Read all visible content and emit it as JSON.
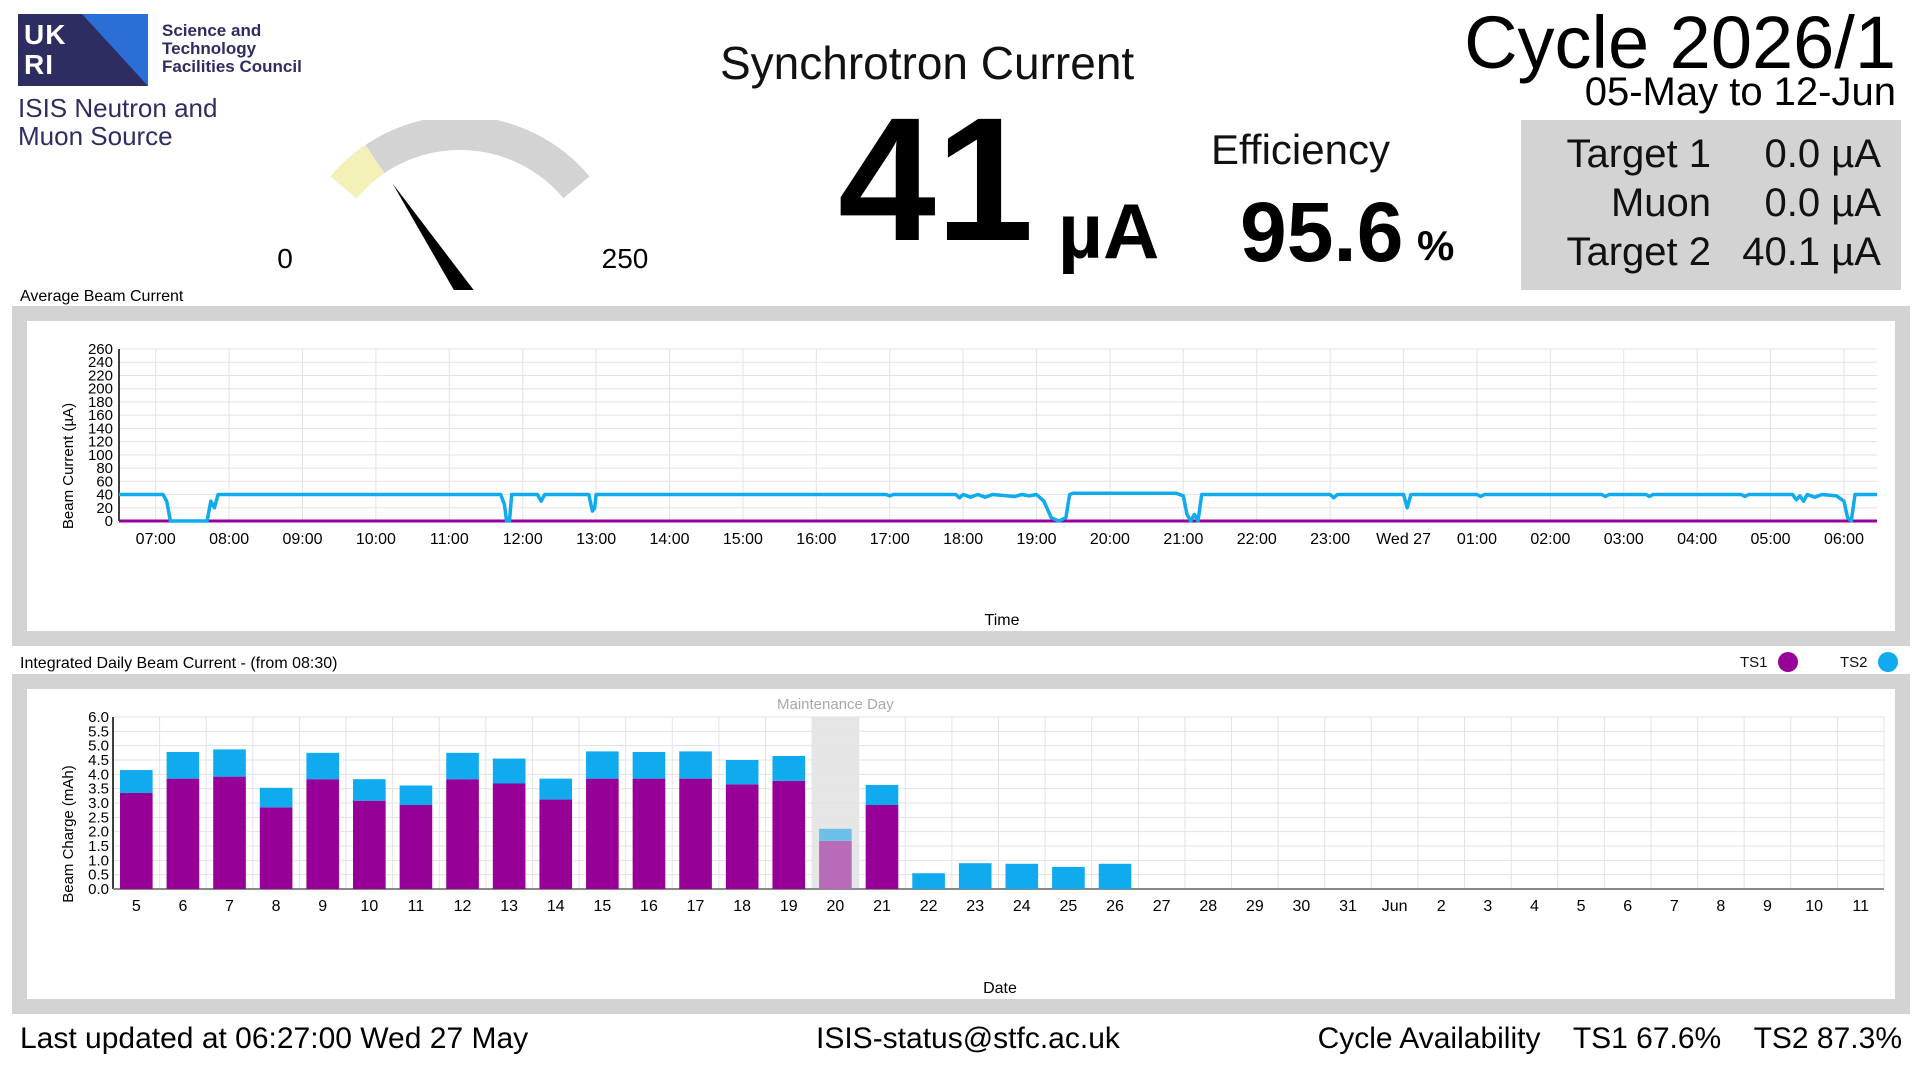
{
  "logo": {
    "ukri_top": "UK",
    "ukri_bottom": "RI",
    "org_line1": "Science and",
    "org_line2": "Technology",
    "org_line3": "Facilities Council",
    "source_line1": "ISIS Neutron and",
    "source_line2": "Muon Source"
  },
  "gauge": {
    "min_label": "0",
    "max_label": "250",
    "min": 0,
    "max": 250,
    "value": 41,
    "warning_max": 40,
    "track_color": "#d3d3d3",
    "warning_color": "#f3f0b8",
    "needle_color": "#000000"
  },
  "header": {
    "title": "Synchrotron Current",
    "current_value": "41",
    "current_unit": "µA",
    "efficiency_label": "Efficiency",
    "efficiency_value": "95.6",
    "efficiency_unit": "%",
    "cycle_title": "Cycle 2026/1",
    "cycle_dates": "05-May to 12-Jun"
  },
  "targets": [
    {
      "name": "Target 1",
      "value": "0.0 µA"
    },
    {
      "name": "Muon",
      "value": "0.0 µA"
    },
    {
      "name": "Target 2",
      "value": "40.1 µA"
    }
  ],
  "avg_panel_label": "Average Beam Current",
  "int_panel_label": "Integrated Daily Beam Current - (from 08:30)",
  "legend": {
    "ts1_label": "TS1",
    "ts2_label": "TS2",
    "ts1_color": "#960096",
    "ts2_color": "#10aaee"
  },
  "chart_data": [
    {
      "type": "line",
      "xlabel": "Time",
      "ylabel": "Beam Current (µA)",
      "ylim": [
        0,
        260
      ],
      "yticks": [
        0,
        20,
        40,
        60,
        80,
        100,
        120,
        140,
        160,
        180,
        200,
        220,
        240,
        260
      ],
      "xlim": [
        6.5,
        30.45
      ],
      "xticks": [
        {
          "t": 7,
          "label": "07:00"
        },
        {
          "t": 8,
          "label": "08:00"
        },
        {
          "t": 9,
          "label": "09:00"
        },
        {
          "t": 10,
          "label": "10:00"
        },
        {
          "t": 11,
          "label": "11:00"
        },
        {
          "t": 12,
          "label": "12:00"
        },
        {
          "t": 13,
          "label": "13:00"
        },
        {
          "t": 14,
          "label": "14:00"
        },
        {
          "t": 15,
          "label": "15:00"
        },
        {
          "t": 16,
          "label": "16:00"
        },
        {
          "t": 17,
          "label": "17:00"
        },
        {
          "t": 18,
          "label": "18:00"
        },
        {
          "t": 19,
          "label": "19:00"
        },
        {
          "t": 20,
          "label": "20:00"
        },
        {
          "t": 21,
          "label": "21:00"
        },
        {
          "t": 22,
          "label": "22:00"
        },
        {
          "t": 23,
          "label": "23:00"
        },
        {
          "t": 24,
          "label": "Wed 27"
        },
        {
          "t": 25,
          "label": "01:00"
        },
        {
          "t": 26,
          "label": "02:00"
        },
        {
          "t": 27,
          "label": "03:00"
        },
        {
          "t": 28,
          "label": "04:00"
        },
        {
          "t": 29,
          "label": "05:00"
        },
        {
          "t": 30,
          "label": "06:00"
        }
      ],
      "grid": true,
      "series": [
        {
          "name": "TS2",
          "color": "#10aaee",
          "points": [
            [
              6.5,
              40
            ],
            [
              7.1,
              40
            ],
            [
              7.15,
              30
            ],
            [
              7.2,
              0
            ],
            [
              7.7,
              0
            ],
            [
              7.75,
              30
            ],
            [
              7.8,
              20
            ],
            [
              7.85,
              40
            ],
            [
              11.7,
              40
            ],
            [
              11.75,
              25
            ],
            [
              11.78,
              0
            ],
            [
              11.82,
              0
            ],
            [
              11.85,
              40
            ],
            [
              12.2,
              40
            ],
            [
              12.25,
              30
            ],
            [
              12.3,
              40
            ],
            [
              12.9,
              40
            ],
            [
              12.95,
              15
            ],
            [
              12.98,
              20
            ],
            [
              13.0,
              40
            ],
            [
              16.95,
              40
            ],
            [
              17.0,
              38
            ],
            [
              17.05,
              40
            ],
            [
              17.9,
              40
            ],
            [
              17.95,
              35
            ],
            [
              18.0,
              40
            ],
            [
              18.1,
              36
            ],
            [
              18.2,
              40
            ],
            [
              18.3,
              36
            ],
            [
              18.4,
              40
            ],
            [
              18.7,
              37
            ],
            [
              18.8,
              40
            ],
            [
              18.9,
              38
            ],
            [
              19.0,
              40
            ],
            [
              19.1,
              30
            ],
            [
              19.2,
              5
            ],
            [
              19.3,
              0
            ],
            [
              19.4,
              5
            ],
            [
              19.45,
              40
            ],
            [
              19.5,
              42
            ],
            [
              20.9,
              42
            ],
            [
              21.0,
              38
            ],
            [
              21.05,
              10
            ],
            [
              21.1,
              0
            ],
            [
              21.15,
              10
            ],
            [
              21.2,
              0
            ],
            [
              21.25,
              40
            ],
            [
              23.0,
              40
            ],
            [
              23.05,
              35
            ],
            [
              23.1,
              40
            ],
            [
              24.0,
              40
            ],
            [
              24.05,
              20
            ],
            [
              24.1,
              40
            ],
            [
              25.0,
              40
            ],
            [
              25.05,
              37
            ],
            [
              25.1,
              40
            ],
            [
              26.7,
              40
            ],
            [
              26.75,
              37
            ],
            [
              26.8,
              40
            ],
            [
              27.3,
              40
            ],
            [
              27.35,
              37
            ],
            [
              27.4,
              40
            ],
            [
              28.6,
              40
            ],
            [
              28.65,
              37
            ],
            [
              28.7,
              40
            ],
            [
              29.3,
              40
            ],
            [
              29.35,
              32
            ],
            [
              29.4,
              38
            ],
            [
              29.45,
              30
            ],
            [
              29.5,
              40
            ],
            [
              29.6,
              36
            ],
            [
              29.7,
              40
            ],
            [
              29.9,
              38
            ],
            [
              30.0,
              30
            ],
            [
              30.05,
              5
            ],
            [
              30.1,
              0
            ],
            [
              30.15,
              40
            ],
            [
              30.45,
              40
            ]
          ]
        },
        {
          "name": "TS1",
          "color": "#960096",
          "points": [
            [
              6.5,
              0
            ],
            [
              30.45,
              0
            ]
          ]
        }
      ]
    },
    {
      "type": "bar",
      "stacked": true,
      "xlabel": "Date",
      "ylabel": "Beam Charge (mAh)",
      "ylim": [
        0,
        6.0
      ],
      "yticks": [
        0.0,
        0.5,
        1.0,
        1.5,
        2.0,
        2.5,
        3.0,
        3.5,
        4.0,
        4.5,
        5.0,
        5.5,
        6.0
      ],
      "categories": [
        "5",
        "6",
        "7",
        "8",
        "9",
        "10",
        "11",
        "12",
        "13",
        "14",
        "15",
        "16",
        "17",
        "18",
        "19",
        "20",
        "21",
        "22",
        "23",
        "24",
        "25",
        "26",
        "27",
        "28",
        "29",
        "30",
        "31",
        "Jun",
        "2",
        "3",
        "4",
        "5",
        "6",
        "7",
        "8",
        "9",
        "10",
        "11"
      ],
      "series": [
        {
          "name": "TS1",
          "color": "#960096",
          "values": [
            3.35,
            3.85,
            3.92,
            2.85,
            3.83,
            3.08,
            2.93,
            3.83,
            3.68,
            3.12,
            3.85,
            3.85,
            3.85,
            3.65,
            3.77,
            1.68,
            2.93,
            0,
            0,
            0,
            0,
            0,
            null,
            null,
            null,
            null,
            null,
            null,
            null,
            null,
            null,
            null,
            null,
            null,
            null,
            null,
            null,
            null
          ]
        },
        {
          "name": "TS2",
          "color": "#10aaee",
          "values": [
            0.8,
            0.93,
            0.95,
            0.68,
            0.92,
            0.75,
            0.68,
            0.92,
            0.87,
            0.73,
            0.95,
            0.93,
            0.95,
            0.85,
            0.87,
            0.42,
            0.7,
            0.55,
            0.9,
            0.88,
            0.77,
            0.88,
            null,
            null,
            null,
            null,
            null,
            null,
            null,
            null,
            null,
            null,
            null,
            null,
            null,
            null,
            null,
            null
          ]
        }
      ],
      "annotations": [
        {
          "category": "20",
          "label": "Maintenance Day"
        }
      ]
    }
  ],
  "footer": {
    "last_updated": "Last updated at 06:27:00 Wed 27 May",
    "contact": "ISIS-status@stfc.ac.uk",
    "availability_label": "Cycle Availability",
    "ts1_availability": "TS1 67.6%",
    "ts2_availability": "TS2 87.3%"
  }
}
